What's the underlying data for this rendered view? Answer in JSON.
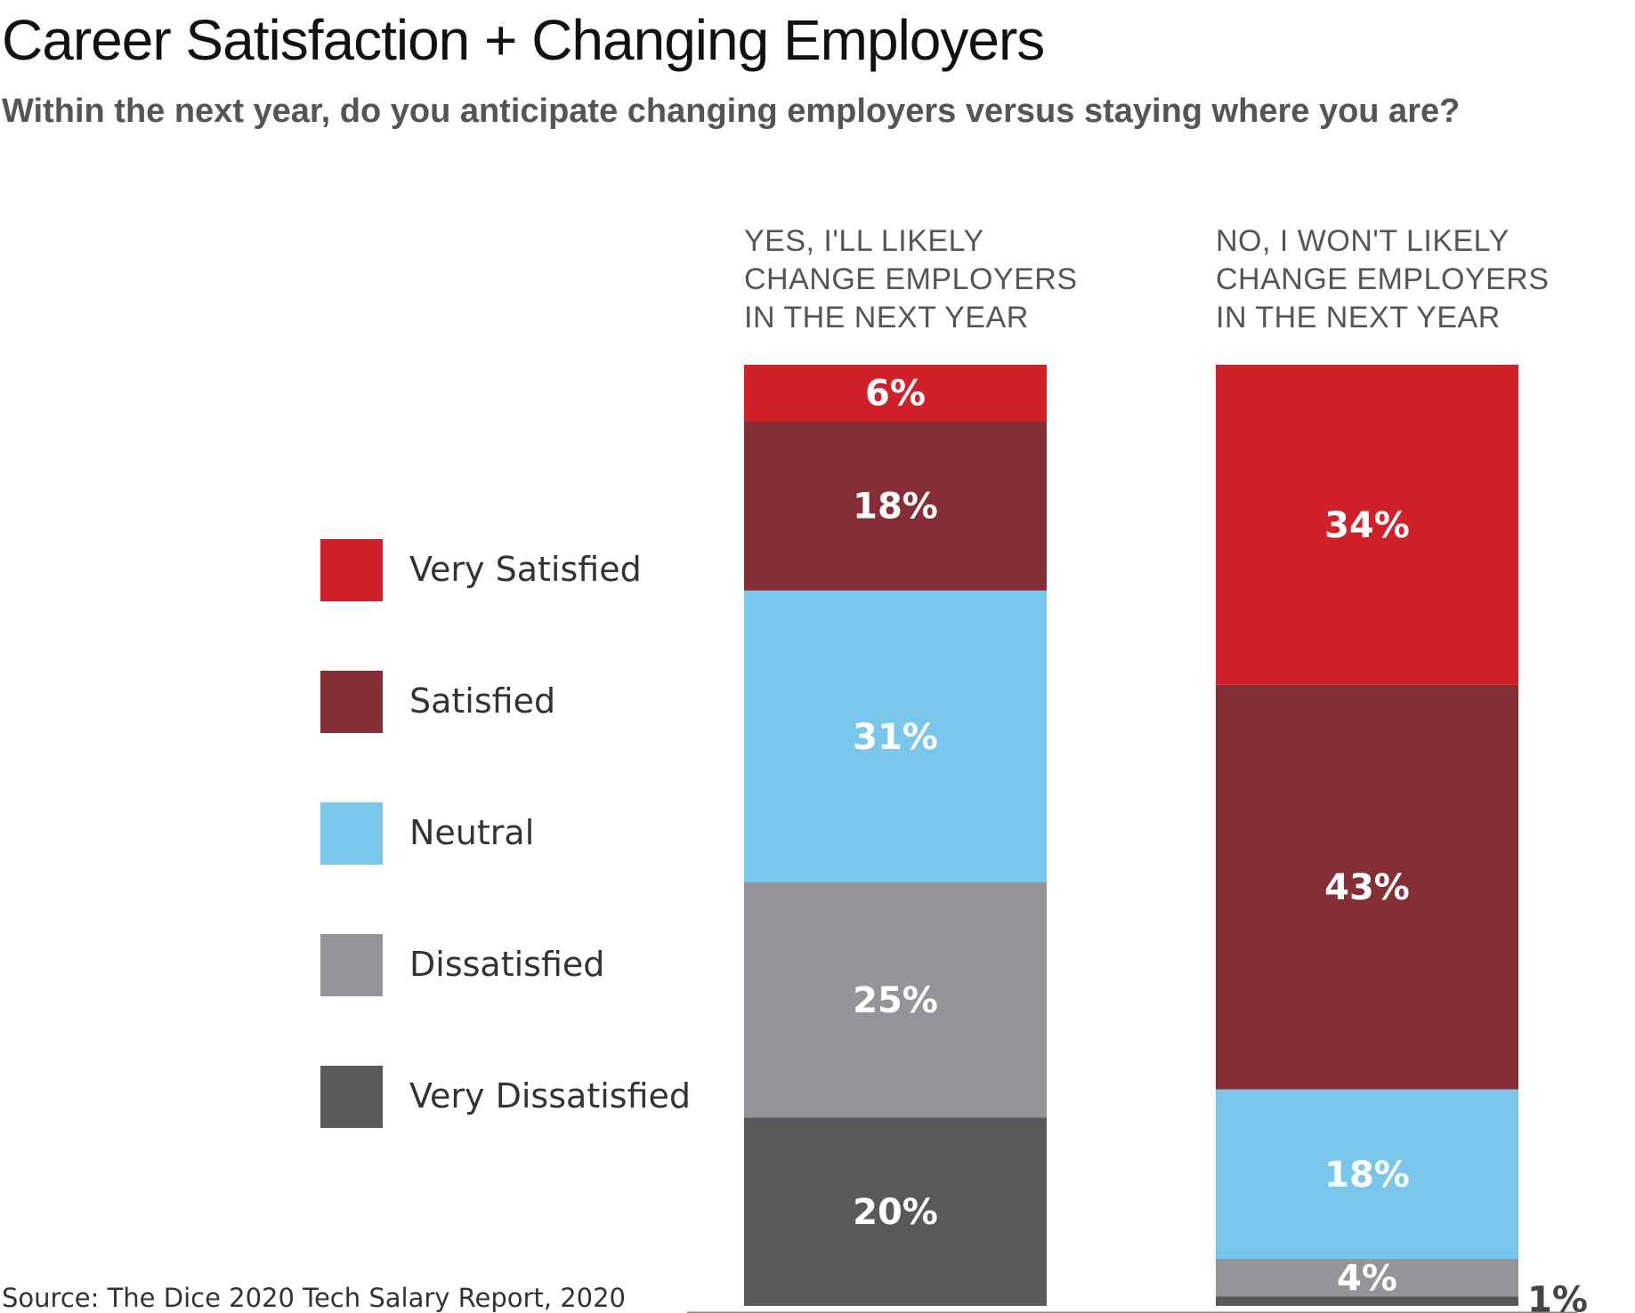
{
  "title": "Career Satisfaction + Changing Employers",
  "subtitle": "Within the next year, do you anticipate changing employers versus staying where you are?",
  "source": "Source: The Dice 2020 Tech Salary Report, 2020",
  "colors": {
    "very_satisfied": "#d0202a",
    "satisfied": "#862e35",
    "neutral": "#78c6ea",
    "dissatisfied": "#939598",
    "very_dissatisfied": "#58595b",
    "axis": "#888888"
  },
  "chart_data": {
    "type": "bar",
    "stacked": true,
    "categories": [
      "YES, I'LL LIKELY\nCHANGE EMPLOYERS\nIN THE NEXT YEAR",
      "NO, I WON'T LIKELY\nCHANGE EMPLOYERS\nIN THE NEXT YEAR"
    ],
    "series": [
      {
        "name": "Very Satisfied",
        "values": [
          6,
          34
        ],
        "labels": [
          "6%",
          "34%"
        ],
        "color": "#d0202a"
      },
      {
        "name": "Satisfied",
        "values": [
          18,
          43
        ],
        "labels": [
          "18%",
          "43%"
        ],
        "color": "#862e35"
      },
      {
        "name": "Neutral",
        "values": [
          31,
          18
        ],
        "labels": [
          "31%",
          "18%"
        ],
        "color": "#78c6ea"
      },
      {
        "name": "Dissatisfied",
        "values": [
          25,
          4
        ],
        "labels": [
          "25%",
          "4%"
        ],
        "color": "#939598"
      },
      {
        "name": "Very Dissatisfied",
        "values": [
          20,
          1
        ],
        "labels": [
          "20%",
          "1%"
        ],
        "color": "#58595b"
      }
    ],
    "legend": "left",
    "ylim": [
      0,
      100
    ],
    "grid": false
  }
}
